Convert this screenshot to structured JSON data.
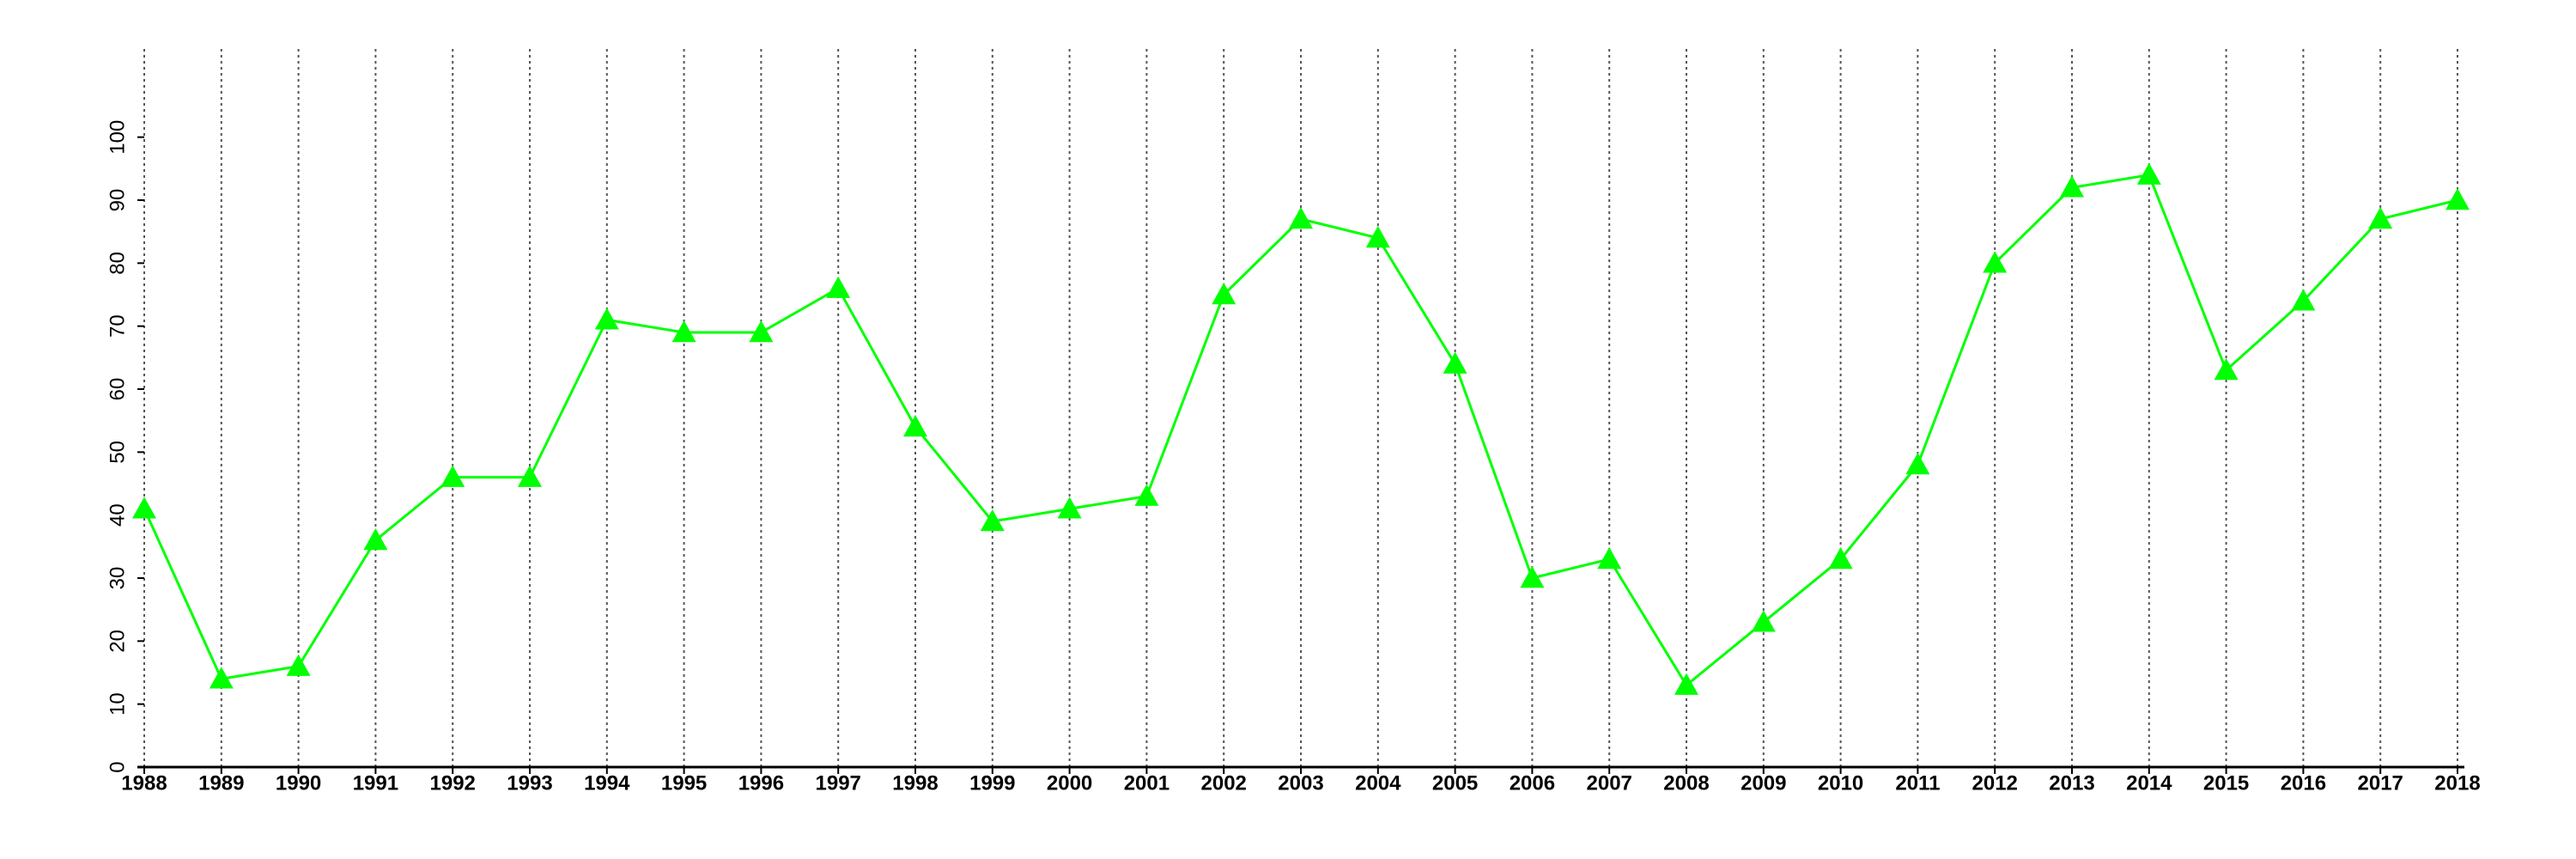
{
  "chart_data": {
    "type": "line",
    "x": [
      1988,
      1989,
      1990,
      1991,
      1992,
      1993,
      1994,
      1995,
      1996,
      1997,
      1998,
      1999,
      2000,
      2001,
      2002,
      2003,
      2004,
      2005,
      2006,
      2007,
      2008,
      2009,
      2010,
      2011,
      2012,
      2013,
      2014,
      2015,
      2016,
      2017,
      2018
    ],
    "series": [
      {
        "color": "#00ff00",
        "marker": "triangle",
        "values": [
          41,
          14,
          16,
          36,
          46,
          46,
          71,
          69,
          69,
          76,
          54,
          39,
          41,
          43,
          75,
          87,
          84,
          64,
          30,
          33,
          13,
          23,
          33,
          48,
          80,
          92,
          94,
          63,
          74,
          87,
          90
        ]
      }
    ],
    "xlim": [
      1988,
      2018
    ],
    "xticks": [
      1988,
      1989,
      1990,
      1991,
      1992,
      1993,
      1994,
      1995,
      1996,
      1997,
      1998,
      1999,
      2000,
      2001,
      2002,
      2003,
      2004,
      2005,
      2006,
      2007,
      2008,
      2009,
      2010,
      2011,
      2012,
      2013,
      2014,
      2015,
      2016,
      2017,
      2018
    ],
    "ylim": [
      0,
      114
    ],
    "yticks": [
      0,
      10,
      20,
      30,
      40,
      50,
      60,
      70,
      80,
      90,
      100
    ],
    "grid": "x"
  }
}
